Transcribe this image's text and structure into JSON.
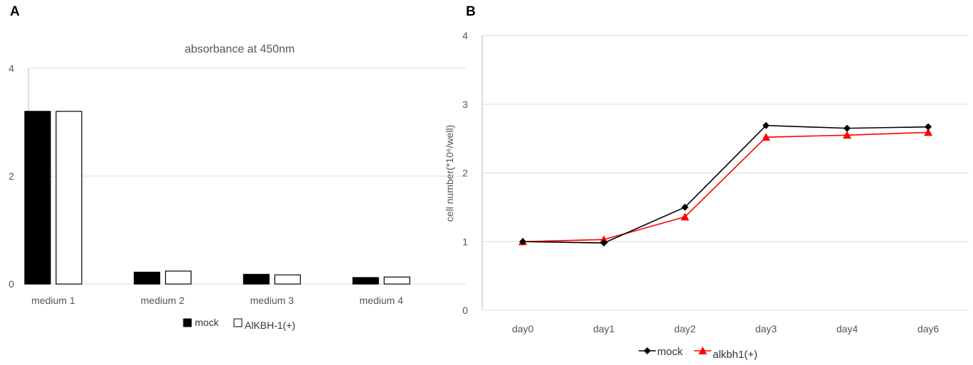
{
  "panels": {
    "a": "A",
    "b": "B"
  },
  "chart_data": [
    {
      "type": "bar",
      "title": "absorbance at 450nm",
      "categories": [
        "medium 1",
        "medium 2",
        "medium 3",
        "medium 4"
      ],
      "series": [
        {
          "name": "mock",
          "values": [
            3.2,
            0.22,
            0.18,
            0.12
          ],
          "fill": "#000000"
        },
        {
          "name": "AlKBH-1(+)",
          "values": [
            3.2,
            0.24,
            0.17,
            0.13
          ],
          "fill": "#ffffff"
        }
      ],
      "ylim": [
        0,
        4
      ],
      "yticks": [
        0,
        2,
        4
      ],
      "grid": true,
      "legend": "bottom"
    },
    {
      "type": "line",
      "x": [
        "day0",
        "day1",
        "day2",
        "day3",
        "day4",
        "day6"
      ],
      "series": [
        {
          "name": "mock",
          "values": [
            1.0,
            0.98,
            1.5,
            2.69,
            2.65,
            2.67
          ],
          "color": "#000000",
          "marker": "diamond"
        },
        {
          "name": "alkbh1(+)",
          "values": [
            1.0,
            1.03,
            1.36,
            2.52,
            2.55,
            2.59
          ],
          "color": "#ff0000",
          "marker": "triangle"
        }
      ],
      "ylabel": "cell number(*10⁶/well)",
      "ylim": [
        0,
        4
      ],
      "yticks": [
        0,
        1,
        2,
        3,
        4
      ],
      "grid": true,
      "legend": "bottom"
    }
  ]
}
